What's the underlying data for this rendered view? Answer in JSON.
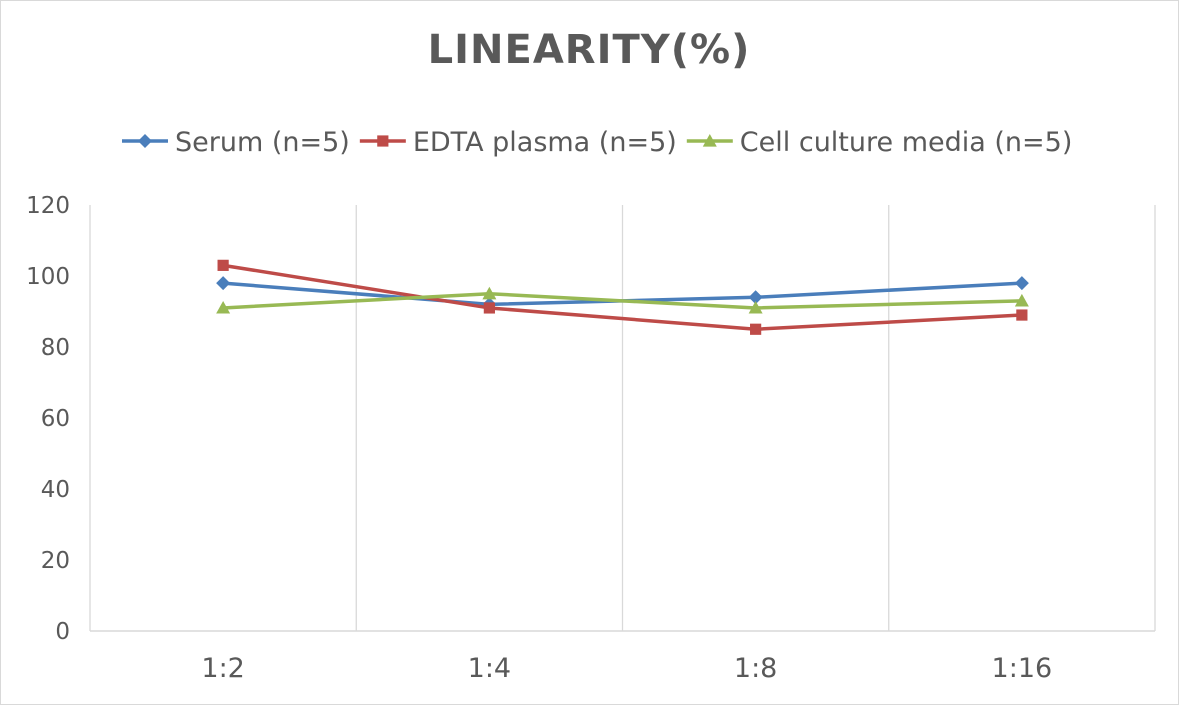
{
  "chart_data": {
    "type": "line",
    "title": "LINEARITY(%)",
    "categories": [
      "1:2",
      "1:4",
      "1:8",
      "1:16"
    ],
    "ylim": [
      0,
      120
    ],
    "yticks": [
      0,
      20,
      40,
      60,
      80,
      100,
      120
    ],
    "grid": "vertical category separators only",
    "legend_placement": "top",
    "series": [
      {
        "name": "Serum (n=5)",
        "values": [
          98,
          92,
          94,
          98
        ],
        "color": "#4A7EBB",
        "marker": "diamond"
      },
      {
        "name": "EDTA plasma (n=5)",
        "values": [
          103,
          91,
          85,
          89
        ],
        "color": "#BE4B48",
        "marker": "square"
      },
      {
        "name": "Cell culture media (n=5)",
        "values": [
          91,
          95,
          91,
          93
        ],
        "color": "#98B954",
        "marker": "triangle"
      }
    ]
  }
}
